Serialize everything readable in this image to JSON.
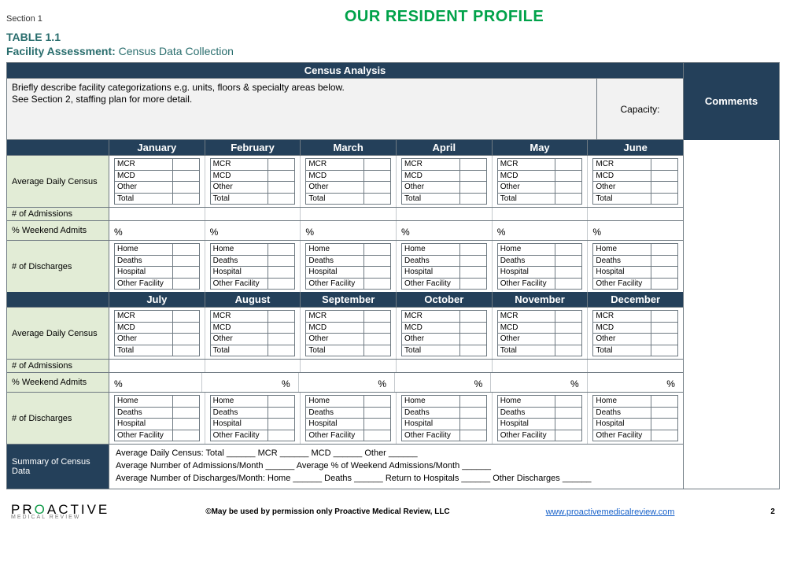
{
  "colors": {
    "title_green": "#00a24a",
    "header_navy": "#24405a",
    "side_green": "#e2ecd6",
    "subtitle_teal": "#2a6e6e",
    "border_gray": "#6f7a82",
    "desc_bg": "#f2f2f2"
  },
  "header": {
    "section": "Section 1",
    "title": "OUR RESIDENT PROFILE",
    "table_label": "TABLE 1.1",
    "subtitle_bold": "Facility Assessment:",
    "subtitle_rest": "   Census Data Collection"
  },
  "census_analysis_title": "Census Analysis",
  "description": "Briefly describe facility categorizations e.g. units, floors & specialty areas below.\nSee Section 2, staffing plan for more detail.",
  "capacity_label": "Capacity:",
  "comments_label": "Comments",
  "months_h1": [
    "January",
    "February",
    "March",
    "April",
    "May",
    "June"
  ],
  "months_h2": [
    "July",
    "August",
    "September",
    "October",
    "November",
    "December"
  ],
  "row_labels": {
    "adc": "Average Daily Census",
    "admissions": "# of Admissions",
    "weekend": "% Weekend Admits",
    "discharges": "# of Discharges",
    "summary": "Summary of Census Data"
  },
  "census_rows": [
    "MCR",
    "MCD",
    "Other",
    "Total"
  ],
  "discharge_rows": [
    "Home",
    "Deaths",
    "Hospital",
    "Other Facility"
  ],
  "percent_sign": "%",
  "pct_align_h1": [
    "left",
    "left",
    "left",
    "left",
    "left",
    "left"
  ],
  "pct_align_h2": [
    "left",
    "right",
    "right",
    "right",
    "right",
    "right"
  ],
  "summary_lines": [
    "Average Daily Census: Total ______    MCR ______    MCD ______    Other ______",
    "Average Number of Admissions/Month ______    Average % of Weekend Admissions/Month ______",
    "Average Number of Discharges/Month: Home ______    Deaths ______    Return to Hospitals ______    Other Discharges ______"
  ],
  "footer": {
    "brand_pre": "PR",
    "brand_o": "O",
    "brand_post": "ACTIVE",
    "brand_sub": "MEDICAL   REVIEW",
    "copyright": "©May be used by permission only Proactive Medical Review, LLC",
    "link": "www.proactivemedicalreview.com",
    "page": "2"
  }
}
